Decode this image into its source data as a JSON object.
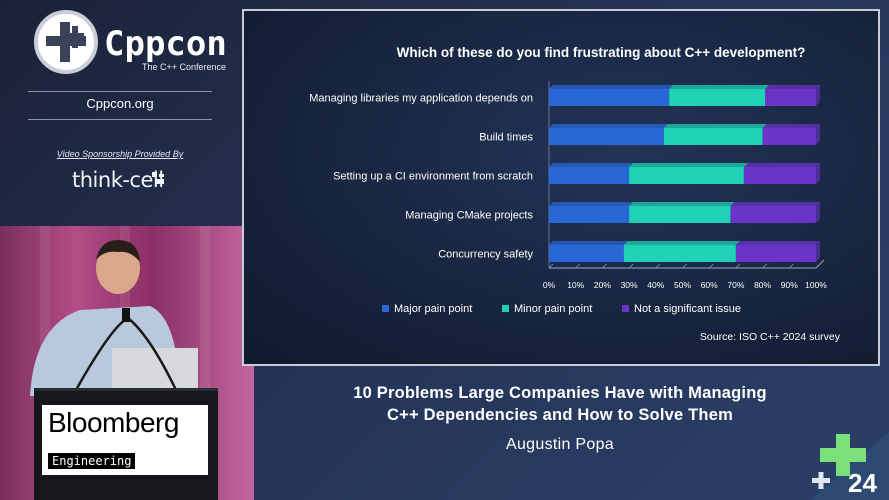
{
  "branding": {
    "logo_title": "Cppcon",
    "logo_subtitle": "The C++ Conference",
    "url": "Cppcon.org",
    "sponsor_text": "Video Sponsorship Provided By",
    "sponsor_name": "think-cell",
    "year": "24"
  },
  "podium": {
    "sign": "Bloomberg",
    "tag": "Engineering"
  },
  "slide": {
    "source": "Source: ISO C++ 2024 survey"
  },
  "talk": {
    "title_line1": "10 Problems Large Companies Have with Managing",
    "title_line2": "C++ Dependencies and How to Solve Them",
    "speaker": "Augustin Popa"
  },
  "colors": {
    "major": "#2a67d6",
    "minor": "#1fd1b5",
    "not_significant": "#6a34c8",
    "slide_border": "#c8ccd4"
  },
  "chart_data": {
    "type": "bar",
    "orientation": "horizontal",
    "stacked": true,
    "title": "Which of these do you find frustrating about C++ development?",
    "categories": [
      "Managing libraries my application depends on",
      "Build times",
      "Setting up a CI environment from scratch",
      "Managing CMake projects",
      "Concurrency safety"
    ],
    "series": [
      {
        "name": "Major pain point",
        "values": [
          45,
          43,
          30,
          30,
          28
        ]
      },
      {
        "name": "Minor pain point",
        "values": [
          36,
          37,
          43,
          38,
          42
        ]
      },
      {
        "name": "Not a significant issue",
        "values": [
          19,
          20,
          27,
          32,
          30
        ]
      }
    ],
    "x_ticks": [
      "0%",
      "10%",
      "20%",
      "30%",
      "40%",
      "50%",
      "60%",
      "70%",
      "80%",
      "90%",
      "100%"
    ],
    "xlim": [
      0,
      100
    ],
    "grid": false,
    "legend_position": "bottom"
  }
}
